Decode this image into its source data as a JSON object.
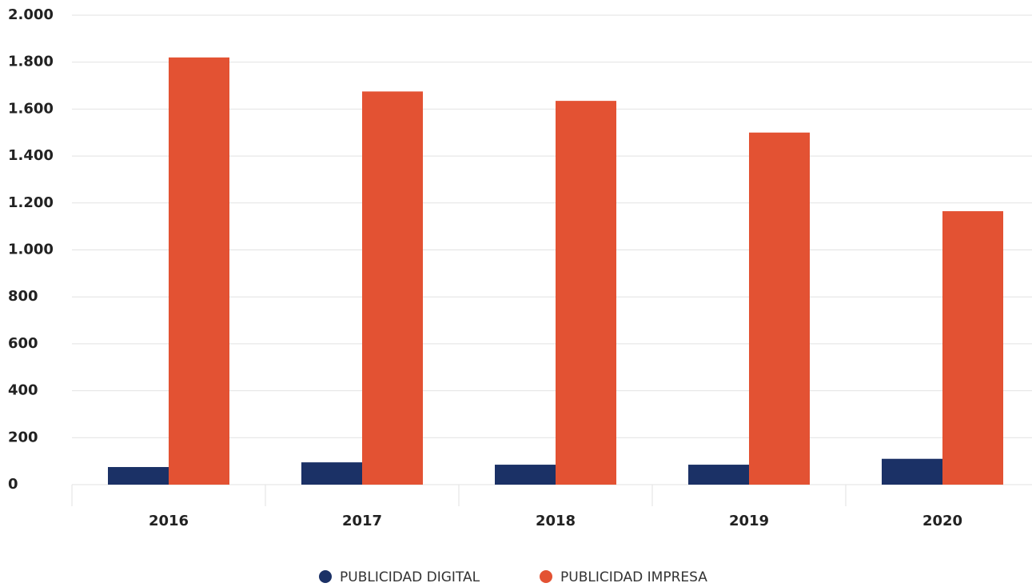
{
  "chart_data": {
    "type": "bar",
    "categories": [
      "2016",
      "2017",
      "2018",
      "2019",
      "2020"
    ],
    "series": [
      {
        "name": "PUBLICIDAD DIGITAL",
        "color": "#1b3166",
        "values": [
          75,
          95,
          85,
          85,
          110
        ]
      },
      {
        "name": "PUBLICIDAD IMPRESA",
        "color": "#e35233",
        "values": [
          1820,
          1675,
          1635,
          1500,
          1165
        ]
      }
    ],
    "ylim": [
      0,
      2000
    ],
    "yticks": [
      0,
      200,
      400,
      600,
      800,
      {
        "value": 1000,
        "label": "1.000"
      },
      {
        "value": 1200,
        "label": "1.200"
      },
      {
        "value": 1400,
        "label": "1.400"
      },
      {
        "value": 1600,
        "label": "1.600"
      },
      {
        "value": 1800,
        "label": "1.800"
      },
      {
        "value": 2000,
        "label": "2.000"
      }
    ],
    "grid": true,
    "legend": "bottom"
  }
}
